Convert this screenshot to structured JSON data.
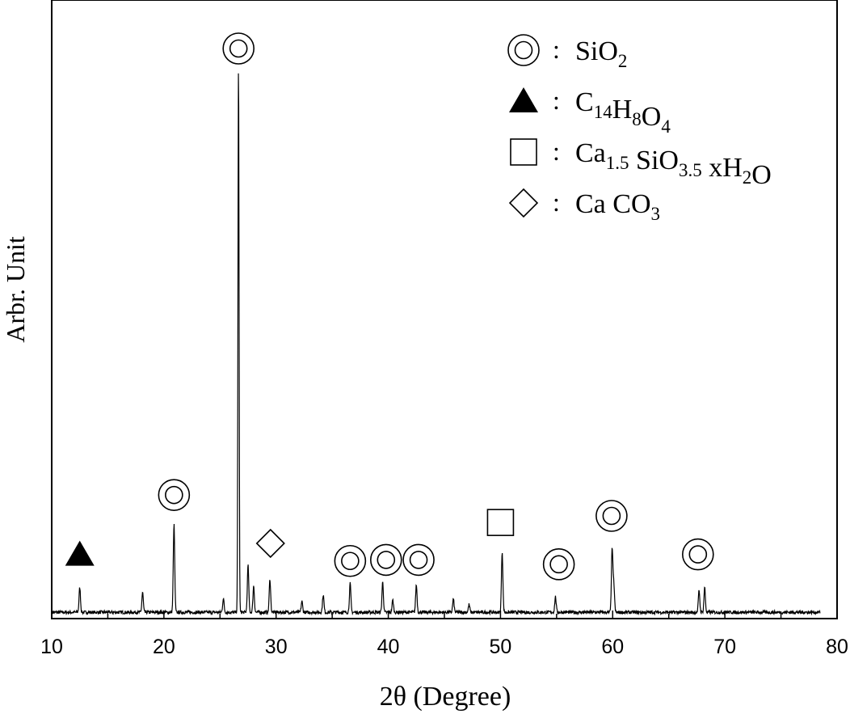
{
  "chart_data": {
    "type": "line",
    "title": "",
    "xlabel": "2θ (Degree)",
    "ylabel": "Arbr. Unit",
    "xlim": [
      10,
      80
    ],
    "ylim": [
      0,
      1
    ],
    "x_ticks": [
      10,
      20,
      30,
      40,
      50,
      60,
      70,
      80
    ],
    "x_tick_labels": [
      "10",
      "20",
      "30",
      "40",
      "50",
      "60",
      "70",
      "80"
    ],
    "grid": false,
    "legend_position": "top-right",
    "legend": [
      {
        "marker": "double-circle",
        "sep": ":",
        "label": "SiO",
        "sub": "2"
      },
      {
        "marker": "filled-triangle",
        "sep": ":",
        "label": "C14H8O4",
        "parts": [
          [
            "C",
            false
          ],
          [
            "14",
            true
          ],
          [
            "H",
            false
          ],
          [
            "8",
            true
          ],
          [
            "O",
            false
          ],
          [
            "4",
            true
          ]
        ]
      },
      {
        "marker": "open-square",
        "sep": ":",
        "label": "Ca1.5 SiO3.5 xH2O",
        "parts": [
          [
            "Ca",
            false
          ],
          [
            "1.5",
            true
          ],
          [
            " SiO",
            false
          ],
          [
            "3.5",
            true
          ],
          [
            "  xH",
            false
          ],
          [
            "2",
            true
          ],
          [
            "O",
            false
          ]
        ]
      },
      {
        "marker": "open-diamond",
        "sep": ":",
        "label": "Ca CO3",
        "parts": [
          [
            "Ca CO",
            false
          ],
          [
            "3",
            true
          ]
        ]
      }
    ],
    "peaks": [
      {
        "x": 12.5,
        "y": 0.045,
        "phase": "C14H8O4"
      },
      {
        "x": 18.1,
        "y": 0.036,
        "phase": ""
      },
      {
        "x": 20.9,
        "y": 0.16,
        "phase": "SiO2"
      },
      {
        "x": 25.3,
        "y": 0.025,
        "phase": ""
      },
      {
        "x": 26.65,
        "y": 1.0,
        "phase": "SiO2"
      },
      {
        "x": 27.5,
        "y": 0.085,
        "phase": ""
      },
      {
        "x": 28.0,
        "y": 0.048,
        "phase": ""
      },
      {
        "x": 29.45,
        "y": 0.06,
        "phase": "CaCO3"
      },
      {
        "x": 32.3,
        "y": 0.02,
        "phase": ""
      },
      {
        "x": 34.2,
        "y": 0.032,
        "phase": ""
      },
      {
        "x": 36.6,
        "y": 0.052,
        "phase": "SiO2"
      },
      {
        "x": 39.5,
        "y": 0.055,
        "phase": "SiO2"
      },
      {
        "x": 40.4,
        "y": 0.022,
        "phase": ""
      },
      {
        "x": 42.5,
        "y": 0.05,
        "phase": "SiO2"
      },
      {
        "x": 45.8,
        "y": 0.024,
        "phase": ""
      },
      {
        "x": 47.2,
        "y": 0.014,
        "phase": ""
      },
      {
        "x": 50.15,
        "y": 0.11,
        "phase": "Ca1.5SiO3.5xH2O"
      },
      {
        "x": 54.9,
        "y": 0.028,
        "phase": "SiO2"
      },
      {
        "x": 59.95,
        "y": 0.115,
        "phase": "SiO2"
      },
      {
        "x": 60.1,
        "y": 0.05,
        "phase": ""
      },
      {
        "x": 67.7,
        "y": 0.04,
        "phase": "SiO2"
      },
      {
        "x": 68.2,
        "y": 0.045,
        "phase": ""
      }
    ],
    "annotations": [
      {
        "marker": "filled-triangle",
        "x": 12.5,
        "y": 0.08
      },
      {
        "marker": "double-circle",
        "x": 20.9,
        "y": 0.188
      },
      {
        "marker": "double-circle",
        "x": 26.65,
        "y": 1.0
      },
      {
        "marker": "open-diamond",
        "x": 29.5,
        "y": 0.1
      },
      {
        "marker": "double-circle",
        "x": 36.6,
        "y": 0.068
      },
      {
        "marker": "double-circle",
        "x": 39.8,
        "y": 0.07
      },
      {
        "marker": "double-circle",
        "x": 42.7,
        "y": 0.07
      },
      {
        "marker": "open-square",
        "x": 50.0,
        "y": 0.138
      },
      {
        "marker": "double-circle",
        "x": 55.2,
        "y": 0.062
      },
      {
        "marker": "double-circle",
        "x": 59.9,
        "y": 0.15
      },
      {
        "marker": "double-circle",
        "x": 67.6,
        "y": 0.08
      }
    ]
  }
}
